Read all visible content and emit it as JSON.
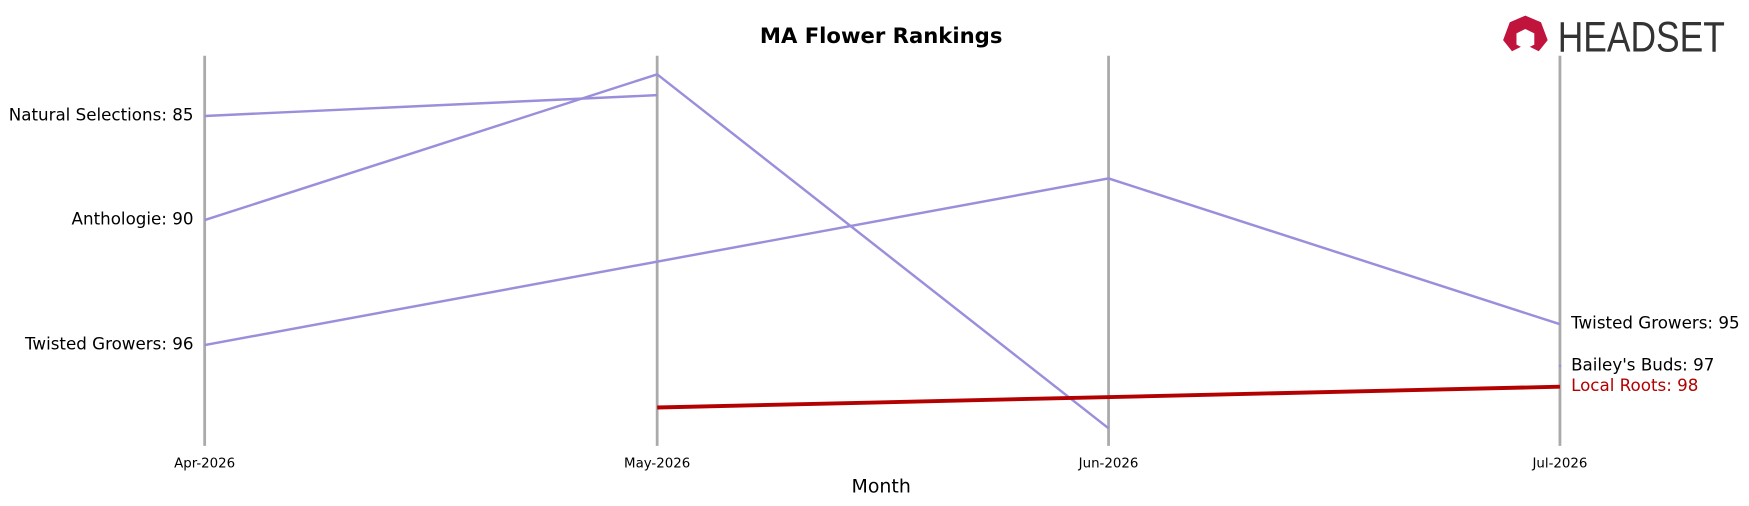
{
  "chart_data": {
    "type": "bump",
    "title": "MA Flower Rankings",
    "x_label": "Month",
    "logo": "HEADSET",
    "categories": [
      "Apr-2026",
      "May-2026",
      "Jun-2026",
      "Jul-2026"
    ],
    "ylim": [
      82,
      101
    ],
    "y_inverted": true,
    "series": [
      {
        "name": "Natural Selections",
        "color": "#9b8fdb",
        "x": [
          "Apr-2026",
          "May-2026"
        ],
        "values": [
          85,
          84
        ],
        "value_labels": [
          "Natural Selections: 85",
          null
        ]
      },
      {
        "name": "Anthologie",
        "color": "#9b8fdb",
        "x": [
          "Apr-2026",
          "May-2026",
          "Jun-2026"
        ],
        "values": [
          90,
          83,
          100
        ],
        "value_labels": [
          "Anthologie: 90",
          null,
          null
        ]
      },
      {
        "name": "Twisted Growers",
        "color": "#9b8fdb",
        "x": [
          "Apr-2026",
          "Jun-2026",
          "Jul-2026"
        ],
        "values": [
          96,
          88,
          95
        ],
        "value_labels": [
          "Twisted Growers: 96",
          null,
          "Twisted Growers: 95"
        ]
      },
      {
        "name": "Bailey's Buds",
        "color": "#9b8fdb",
        "x": [
          "Jul-2026"
        ],
        "values": [
          97
        ],
        "value_labels": [
          "Bailey's Buds: 97"
        ]
      },
      {
        "name": "Local Roots",
        "color": "#b30000",
        "highlight": true,
        "x": [
          "May-2026",
          "Jul-2026"
        ],
        "values": [
          99,
          98
        ],
        "value_labels": [
          null,
          "Local Roots: 98"
        ]
      }
    ]
  }
}
